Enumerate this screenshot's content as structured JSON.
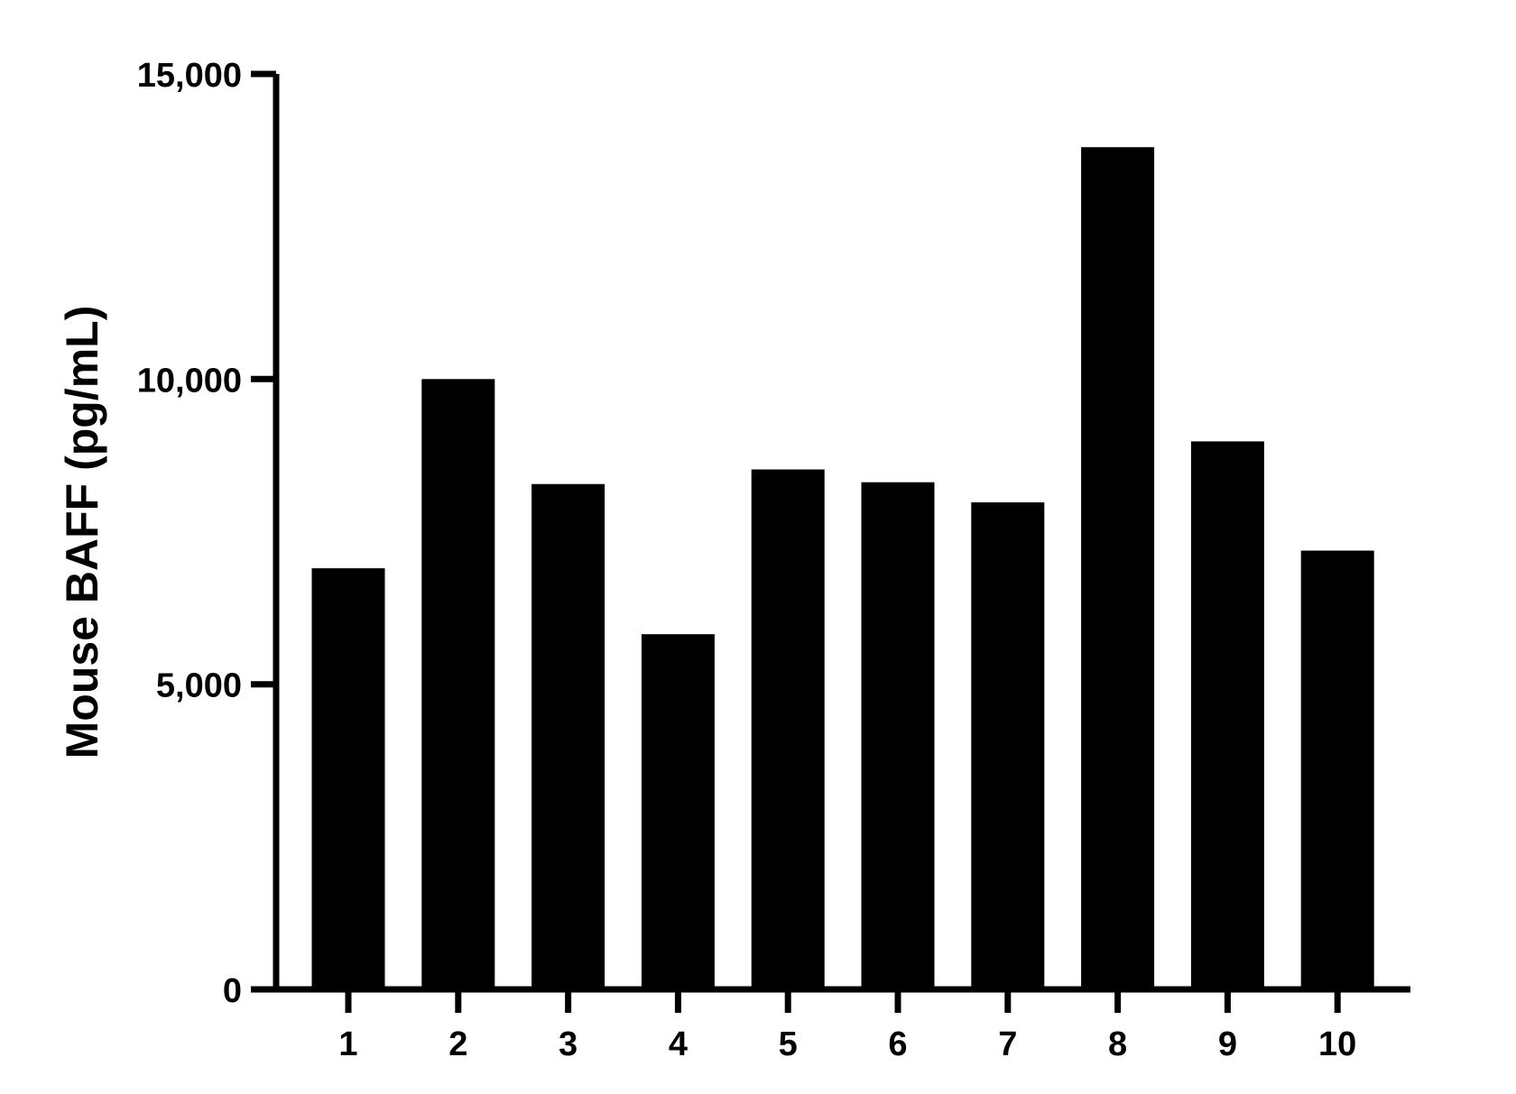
{
  "chart_data": {
    "type": "bar",
    "title": "",
    "xlabel": "",
    "ylabel": "Mouse BAFF (pg/mL)",
    "categories": [
      "1",
      "2",
      "3",
      "4",
      "5",
      "6",
      "7",
      "8",
      "9",
      "10"
    ],
    "values": [
      6900,
      10000,
      8280,
      5820,
      8520,
      8310,
      7980,
      13800,
      8980,
      7190
    ],
    "ylim": [
      0,
      15000
    ],
    "yticks": [
      0,
      5000,
      10000,
      15000
    ],
    "ytick_labels": [
      "0",
      "5,000",
      "10,000",
      "15,000"
    ],
    "grid": false,
    "legend": "none",
    "bar_color": "#000000",
    "axis_color": "#000000"
  }
}
